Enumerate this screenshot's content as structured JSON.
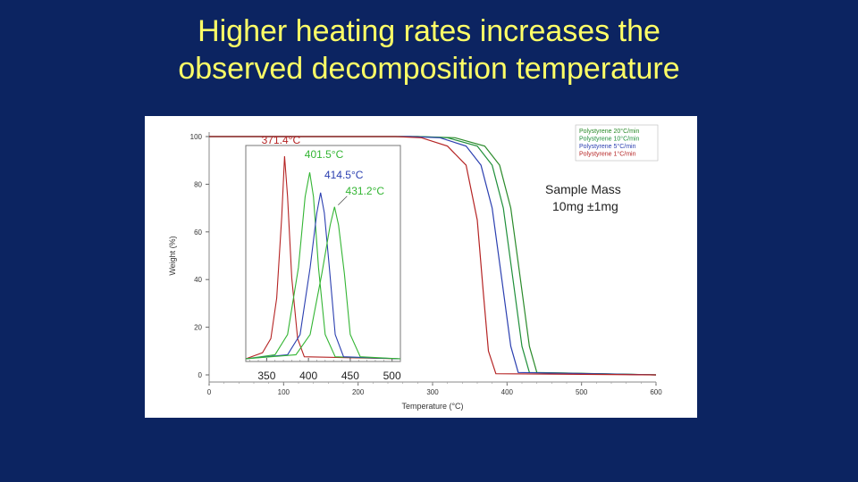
{
  "slide": {
    "title_line1": "Higher heating rates increases the",
    "title_line2": "observed decomposition temperature"
  },
  "chart_data": [
    {
      "type": "line",
      "xlabel": "Temperature (°C)",
      "ylabel": "Weight (%)",
      "xlim": [
        0,
        600
      ],
      "ylim": [
        0,
        100
      ],
      "x_ticks": [
        "0",
        "100",
        "200",
        "300",
        "400",
        "500",
        "600"
      ],
      "y_ticks": [
        "0",
        "20",
        "40",
        "60",
        "80",
        "100"
      ],
      "legend_position": "top-right",
      "series": [
        {
          "name": "Polystyrene 20°C/min",
          "color": "#2a8a2a",
          "x": [
            0,
            280,
            330,
            370,
            390,
            405,
            418,
            430,
            440,
            600
          ],
          "y": [
            100,
            100,
            99.5,
            96,
            88,
            70,
            40,
            12,
            1,
            0
          ]
        },
        {
          "name": "Polystyrene 10°C/min",
          "color": "#1f8f3a",
          "x": [
            0,
            280,
            320,
            360,
            380,
            395,
            408,
            420,
            430,
            600
          ],
          "y": [
            100,
            100,
            99.5,
            96,
            88,
            70,
            40,
            12,
            1,
            0
          ]
        },
        {
          "name": "Polystyrene 5°C/min",
          "color": "#2b3fb0",
          "x": [
            0,
            270,
            310,
            345,
            365,
            380,
            393,
            405,
            415,
            600
          ],
          "y": [
            100,
            100,
            99.5,
            96,
            88,
            70,
            40,
            12,
            1,
            0
          ]
        },
        {
          "name": "Polystyrene 1°C/min",
          "color": "#b52424",
          "x": [
            0,
            250,
            285,
            320,
            345,
            360,
            368,
            375,
            385,
            600
          ],
          "y": [
            100,
            100,
            99.5,
            96,
            88,
            65,
            35,
            10,
            0.5,
            0
          ]
        }
      ],
      "annotation": {
        "line1": "Sample Mass",
        "line2": "10mg ±1mg"
      }
    },
    {
      "type": "line",
      "inset": true,
      "xlim": [
        325,
        510
      ],
      "x_ticks": [
        "350",
        "400",
        "450",
        "500"
      ],
      "series": [
        {
          "name": "Polystyrene 1°C/min",
          "color": "#b52424",
          "peak_label": "371.4°C",
          "peak_x": 371.4,
          "x": [
            325,
            345,
            355,
            362,
            368,
            371.4,
            375,
            380,
            387,
            395,
            510
          ],
          "y": [
            0,
            3,
            10,
            30,
            70,
            100,
            80,
            40,
            10,
            1,
            0
          ]
        },
        {
          "name": "Polystyrene 5°C/min",
          "color": "#33b533",
          "peak_label": "401.5°C",
          "peak_x": 401.5,
          "x": [
            325,
            360,
            375,
            388,
            396,
            401.5,
            406,
            412,
            420,
            432,
            510
          ],
          "y": [
            0,
            2,
            12,
            45,
            80,
            92,
            80,
            45,
            12,
            1,
            0
          ]
        },
        {
          "name": "Polystyrene 10°C/min",
          "color": "#2b3fb0",
          "peak_label": "414.5°C",
          "peak_x": 414.5,
          "x": [
            325,
            375,
            390,
            402,
            410,
            414.5,
            419,
            425,
            432,
            442,
            510
          ],
          "y": [
            0,
            2,
            12,
            45,
            72,
            82,
            72,
            45,
            12,
            1,
            0
          ]
        },
        {
          "name": "Polystyrene 20°C/min",
          "color": "#33b533",
          "peak_label": "431.2°C",
          "peak_x": 431.2,
          "x": [
            325,
            385,
            402,
            416,
            426,
            431.2,
            436,
            443,
            450,
            462,
            510
          ],
          "y": [
            0,
            2,
            12,
            42,
            66,
            75,
            66,
            42,
            12,
            1,
            0
          ]
        }
      ]
    }
  ]
}
